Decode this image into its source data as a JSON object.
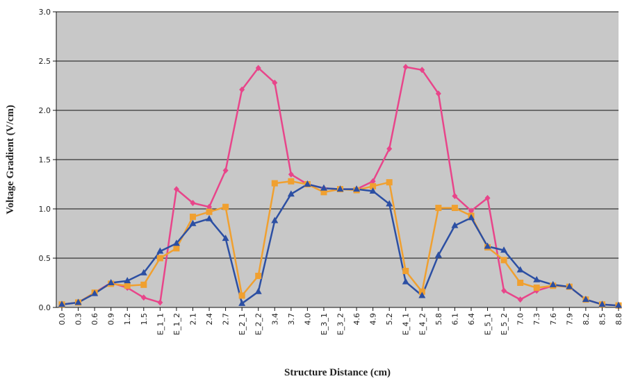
{
  "chart_data": {
    "type": "line",
    "title": "",
    "xlabel": "Structure Distance (cm)",
    "ylabel": "Voltage Gradient (V/cm)",
    "ylim": [
      0,
      3.0
    ],
    "yticks": [
      "0.0",
      "0.5",
      "1.0",
      "1.5",
      "2.0",
      "2.5",
      "3.0"
    ],
    "grid": true,
    "legend": "none",
    "plot_background": "#c8c8c8",
    "categories": [
      "0.0",
      "0.3",
      "0.6",
      "0.9",
      "1.2",
      "1.5",
      "E_1_1",
      "E_1_2",
      "2.1",
      "2.4",
      "2.7",
      "E_2_1",
      "E_2_2",
      "3.4",
      "3.7",
      "4.0",
      "E_3_1",
      "E_3_2",
      "4.6",
      "4.9",
      "5.2",
      "E_4_1",
      "E_4_2",
      "5.8",
      "6.1",
      "6.4",
      "E_5_1",
      "E_5_2",
      "7.0",
      "7.3",
      "7.6",
      "7.9",
      "8.2",
      "8.5",
      "8.8"
    ],
    "series": [
      {
        "color": "#e8458a",
        "marker": "diamond",
        "values": [
          0.03,
          0.05,
          0.15,
          0.25,
          0.2,
          0.1,
          0.05,
          1.2,
          1.06,
          1.02,
          1.39,
          2.21,
          2.43,
          2.28,
          1.35,
          1.25,
          1.21,
          1.2,
          1.2,
          1.28,
          1.61,
          2.44,
          2.41,
          2.17,
          1.13,
          0.98,
          1.11,
          0.17,
          0.08,
          0.17,
          0.22,
          0.21,
          0.08,
          0.03,
          0.02
        ]
      },
      {
        "color": "#f0a030",
        "marker": "square",
        "values": [
          0.03,
          0.05,
          0.15,
          0.24,
          0.22,
          0.23,
          0.5,
          0.6,
          0.92,
          0.97,
          1.02,
          0.12,
          0.32,
          1.26,
          1.28,
          1.25,
          1.17,
          1.2,
          1.19,
          1.23,
          1.27,
          0.37,
          0.16,
          1.01,
          1.01,
          0.93,
          0.61,
          0.48,
          0.25,
          0.2,
          0.22,
          0.21,
          0.08,
          0.03,
          0.02
        ]
      },
      {
        "color": "#2c4fa3",
        "marker": "triangle",
        "values": [
          0.03,
          0.05,
          0.14,
          0.25,
          0.27,
          0.35,
          0.57,
          0.65,
          0.85,
          0.9,
          0.7,
          0.04,
          0.16,
          0.88,
          1.15,
          1.25,
          1.21,
          1.2,
          1.2,
          1.18,
          1.05,
          0.26,
          0.12,
          0.53,
          0.83,
          0.91,
          0.62,
          0.58,
          0.38,
          0.28,
          0.23,
          0.21,
          0.08,
          0.03,
          0.02
        ]
      }
    ]
  }
}
